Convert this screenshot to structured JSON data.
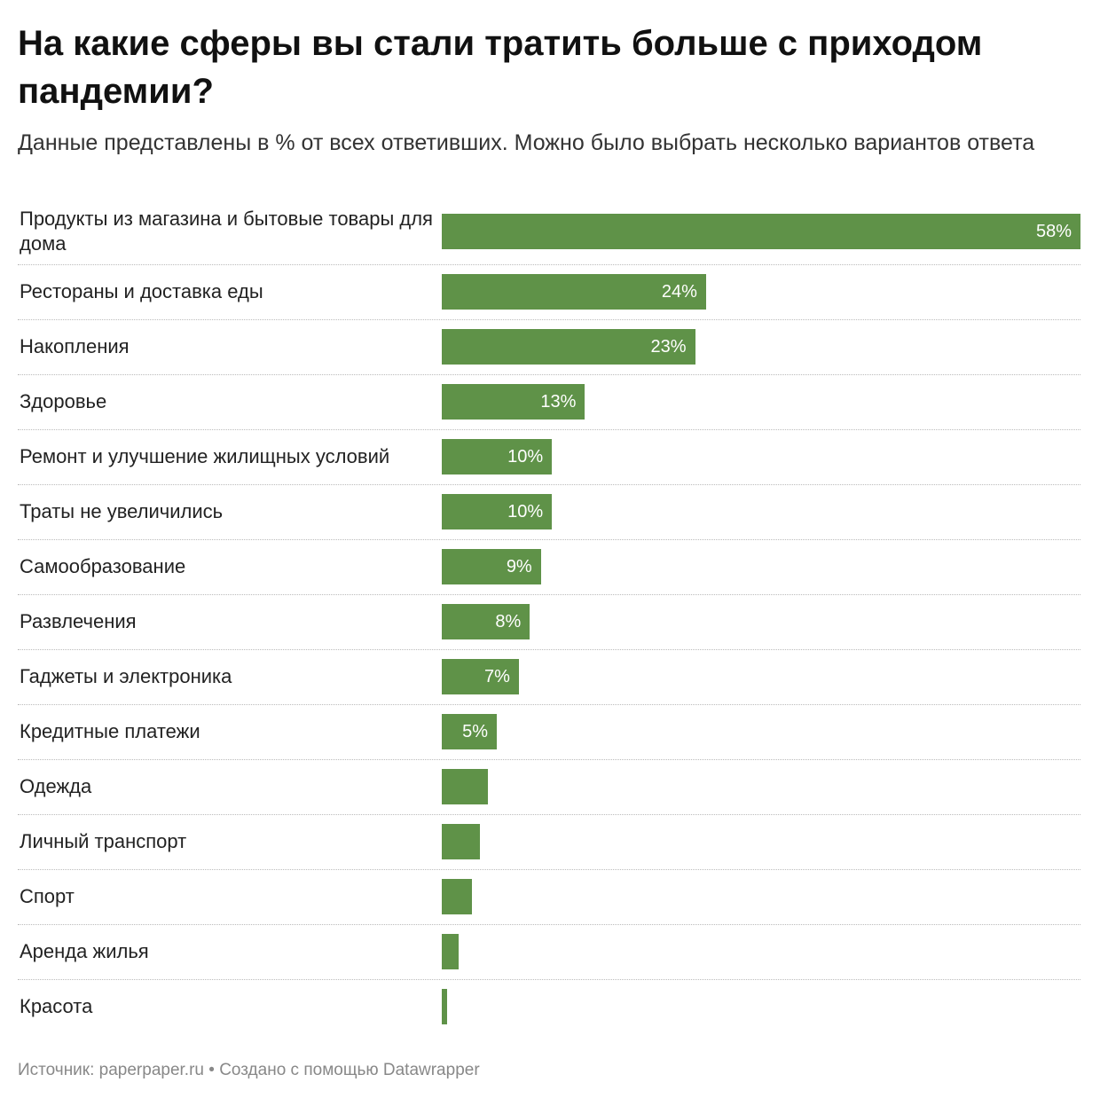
{
  "chart_data": {
    "type": "bar",
    "orientation": "horizontal",
    "title": "На какие сферы вы стали тратить больше с приходом пандемии?",
    "subtitle": "Данные представлены в % от всех ответивших. Можно было выбрать несколько вариантов ответа",
    "categories": [
      "Продукты из магазина и бытовые товары для дома",
      "Рестораны и доставка еды",
      "Накопления",
      "Здоровье",
      "Ремонт и улучшение жилищных условий",
      "Траты не увеличились",
      "Самообразование",
      "Развлечения",
      "Гаджеты и электроника",
      "Кредитные платежи",
      "Одежда",
      "Личный транспорт",
      "Спорт",
      "Аренда жилья",
      "Красота"
    ],
    "values": [
      58,
      24,
      23,
      13,
      10,
      10,
      9,
      8,
      7,
      5,
      4.2,
      3.5,
      2.7,
      1.5,
      0.5
    ],
    "value_labels": [
      "58%",
      "24%",
      "23%",
      "13%",
      "10%",
      "10%",
      "9%",
      "8%",
      "7%",
      "5%",
      null,
      null,
      null,
      null,
      null
    ],
    "color": "#5f9248",
    "xlim": [
      0,
      58
    ],
    "footer": "Источник: paperpaper.ru • Создано с помощью Datawrapper"
  }
}
